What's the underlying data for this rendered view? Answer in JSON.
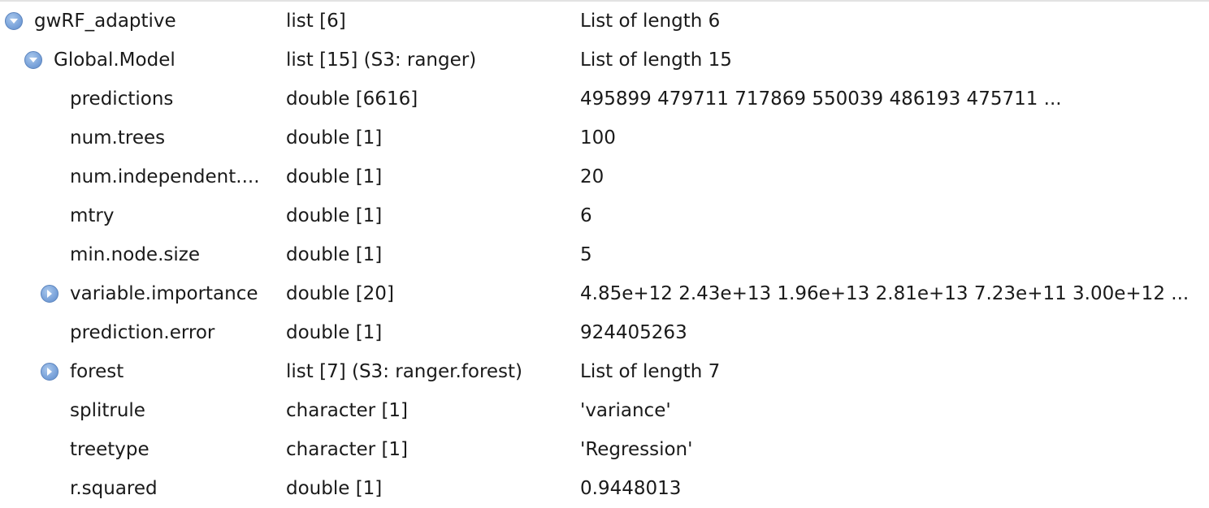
{
  "rows": [
    {
      "name": "gwRF_adaptive",
      "type": "list [6]",
      "value": "List of length 6",
      "toggle_icon": "expanded-down-arrow-icon"
    },
    {
      "name": "Global.Model",
      "type": "list [15] (S3: ranger)",
      "value": "List of length 15",
      "toggle_icon": "expanded-down-arrow-icon"
    },
    {
      "name": "predictions",
      "type": "double [6616]",
      "value": "495899 479711 717869 550039 486193 475711 ..."
    },
    {
      "name": "num.trees",
      "type": "double [1]",
      "value": "100"
    },
    {
      "name": "num.independent....",
      "type": "double [1]",
      "value": "20"
    },
    {
      "name": "mtry",
      "type": "double [1]",
      "value": "6"
    },
    {
      "name": "min.node.size",
      "type": "double [1]",
      "value": "5"
    },
    {
      "name": "variable.importance",
      "type": "double [20]",
      "value": "4.85e+12 2.43e+13 1.96e+13 2.81e+13 7.23e+11 3.00e+12 ...",
      "toggle_icon": "collapsed-right-arrow-icon"
    },
    {
      "name": "prediction.error",
      "type": "double [1]",
      "value": "924405263"
    },
    {
      "name": "forest",
      "type": "list [7] (S3: ranger.forest)",
      "value": "List of length 7",
      "toggle_icon": "collapsed-right-arrow-icon"
    },
    {
      "name": "splitrule",
      "type": "character [1]",
      "value": "'variance'"
    },
    {
      "name": "treetype",
      "type": "character [1]",
      "value": "'Regression'"
    },
    {
      "name": "r.squared",
      "type": "double [1]",
      "value": "0.9448013"
    }
  ],
  "colors": {
    "toggle_fill": "#7ea6dc",
    "toggle_border": "#5b84bd",
    "text": "#1a1a1a"
  }
}
